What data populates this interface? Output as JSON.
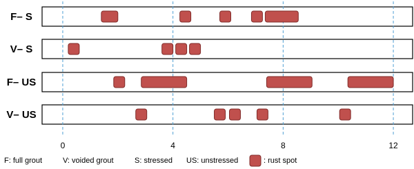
{
  "chart_data": {
    "type": "range",
    "categories": [
      "F– S",
      "V– S",
      "F– US",
      "V– US"
    ],
    "values": [
      [
        [
          1.4,
          2.0
        ],
        [
          4.25,
          4.65
        ],
        [
          5.7,
          6.1
        ],
        [
          6.85,
          7.25
        ],
        [
          7.35,
          8.55
        ]
      ],
      [
        [
          0.2,
          0.6
        ],
        [
          3.6,
          4.0
        ],
        [
          4.1,
          4.5
        ],
        [
          4.6,
          5.0
        ]
      ],
      [
        [
          1.85,
          2.25
        ],
        [
          2.85,
          4.5
        ],
        [
          7.4,
          9.05
        ],
        [
          10.35,
          12.0
        ]
      ],
      [
        [
          2.65,
          3.05
        ],
        [
          5.5,
          5.9
        ],
        [
          6.05,
          6.45
        ],
        [
          7.05,
          7.45
        ],
        [
          10.05,
          10.45
        ]
      ]
    ],
    "color": "#c0504d",
    "xlim": [
      -0.75,
      12.7
    ],
    "xticks": [
      0,
      4,
      8,
      12
    ],
    "grid": true,
    "notes": [
      "F: full grout",
      "V: voided grout",
      "S: stressed",
      "US: unstressed"
    ],
    "legend_label": ": rust spot"
  }
}
